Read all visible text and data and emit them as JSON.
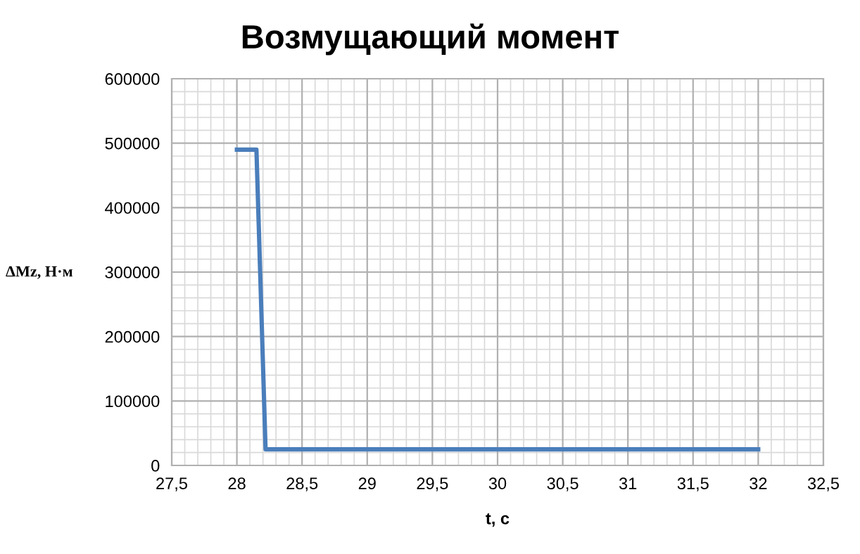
{
  "chart_data": {
    "type": "line",
    "title": "Возмущающий момент",
    "xlabel": "t, с",
    "ylabel": "ΔMz, Н·м",
    "series": [
      {
        "color": "#4a7ebb",
        "x": [
          28,
          28.15,
          28.22,
          32
        ],
        "values": [
          490000,
          490000,
          25000,
          25000
        ]
      }
    ],
    "xlim": [
      27.5,
      32.5
    ],
    "xticks": [
      {
        "value": 27.5,
        "label": "27,5"
      },
      28,
      {
        "value": 28.5,
        "label": "28,5"
      },
      29,
      {
        "value": 29.5,
        "label": "29,5"
      },
      30,
      {
        "value": 30.5,
        "label": "30,5"
      },
      31,
      {
        "value": 31.5,
        "label": "31,5"
      },
      32,
      {
        "value": 32.5,
        "label": "32,5"
      }
    ],
    "ylim": [
      0,
      600000
    ],
    "yticks": [
      0,
      100000,
      200000,
      300000,
      400000,
      500000,
      600000
    ],
    "grid": true,
    "legend": false,
    "marker": "none",
    "line_style": "solid"
  }
}
